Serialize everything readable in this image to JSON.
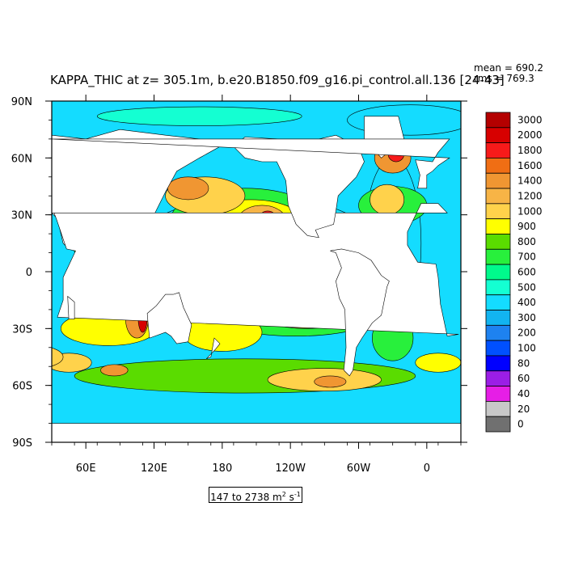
{
  "chart_data": {
    "type": "heatmap",
    "title": "KAPPA_THIC at z= 305.1m, b.e20.B1850.f09_g16.pi_control.all.136 [24-43]",
    "stats": {
      "mean": "mean = 690.2",
      "rms": "rms = 769.3"
    },
    "range_label": {
      "text": "147 to 2738 m",
      "sup1": "2",
      "mid": " s",
      "sup2": "-1"
    },
    "x_ticks": [
      "60E",
      "120E",
      "180",
      "120W",
      "60W",
      "0"
    ],
    "x_tick_lon": [
      60,
      120,
      180,
      240,
      300,
      360
    ],
    "xlim": [
      30,
      390
    ],
    "y_ticks": [
      "90N",
      "60N",
      "30N",
      "0",
      "30S",
      "60S",
      "90S"
    ],
    "y_tick_lat": [
      90,
      60,
      30,
      0,
      -30,
      -60,
      -90
    ],
    "ylim": [
      -90,
      90
    ],
    "colorbar": {
      "levels": [
        "3000",
        "2000",
        "1800",
        "1600",
        "1400",
        "1200",
        "1000",
        "900",
        "800",
        "700",
        "600",
        "500",
        "400",
        "300",
        "200",
        "100",
        "80",
        "60",
        "40",
        "20",
        "0"
      ],
      "colors": [
        "#b40000",
        "#d70000",
        "#f71a1a",
        "#f06e14",
        "#f09632",
        "#f7b446",
        "#ffd24b",
        "#ffff00",
        "#5adc00",
        "#28f03c",
        "#00fa8c",
        "#14ffd2",
        "#14dcff",
        "#12b4f0",
        "#1e82f0",
        "#0050ff",
        "#0000ff",
        "#9b1ee6",
        "#e61ee6",
        "#c8c8c8",
        "#707070"
      ]
    },
    "land_color": "#ffffff",
    "blobs": [
      {
        "lon": 210,
        "lat": 10,
        "rx": 110,
        "ry": 30,
        "value": 400
      },
      {
        "lon": 330,
        "lat": 15,
        "rx": 25,
        "ry": 45,
        "value": 400
      },
      {
        "lon": 345,
        "lat": 80,
        "rx": 55,
        "ry": 8,
        "value": 450
      },
      {
        "lon": 200,
        "lat": 28,
        "rx": 65,
        "ry": 16,
        "value": 700
      },
      {
        "lon": 205,
        "lat": 27,
        "rx": 45,
        "ry": 11,
        "value": 900
      },
      {
        "lon": 215,
        "lat": 26,
        "rx": 22,
        "ry": 9,
        "value": 1200
      },
      {
        "lon": 220,
        "lat": 26,
        "rx": 9,
        "ry": 6,
        "value": 1800
      },
      {
        "lon": 165,
        "lat": 40,
        "rx": 35,
        "ry": 10,
        "value": 1000
      },
      {
        "lon": 150,
        "lat": 44,
        "rx": 18,
        "ry": 6,
        "value": 1400
      },
      {
        "lon": 245,
        "lat": -20,
        "rx": 80,
        "ry": 14,
        "value": 700
      },
      {
        "lon": 255,
        "lat": -20,
        "rx": 48,
        "ry": 10,
        "value": 1000
      },
      {
        "lon": 265,
        "lat": -20,
        "rx": 20,
        "ry": 6,
        "value": 1400
      },
      {
        "lon": 265,
        "lat": -20,
        "rx": 8,
        "ry": 3,
        "value": 1800
      },
      {
        "lon": 330,
        "lat": 35,
        "rx": 30,
        "ry": 10,
        "value": 700
      },
      {
        "lon": 325,
        "lat": 38,
        "rx": 15,
        "ry": 8,
        "value": 1000
      },
      {
        "lon": 330,
        "lat": 60,
        "rx": 16,
        "ry": 8,
        "value": 1400
      },
      {
        "lon": 333,
        "lat": 62,
        "rx": 7,
        "ry": 4,
        "value": 1800
      },
      {
        "lon": 80,
        "lat": -30,
        "rx": 42,
        "ry": 9,
        "value": 900
      },
      {
        "lon": 105,
        "lat": -25,
        "rx": 10,
        "ry": 10,
        "value": 1400
      },
      {
        "lon": 110,
        "lat": -24,
        "rx": 4,
        "ry": 8,
        "value": 2000
      },
      {
        "lon": 180,
        "lat": -32,
        "rx": 35,
        "ry": 10,
        "value": 900
      },
      {
        "lon": 200,
        "lat": -55,
        "rx": 150,
        "ry": 9,
        "value": 800
      },
      {
        "lon": 270,
        "lat": -57,
        "rx": 50,
        "ry": 6,
        "value": 1000
      },
      {
        "lon": 275,
        "lat": -58,
        "rx": 14,
        "ry": 3,
        "value": 1400
      },
      {
        "lon": 45,
        "lat": -48,
        "rx": 20,
        "ry": 5,
        "value": 1000
      },
      {
        "lon": 85,
        "lat": -52,
        "rx": 12,
        "ry": 3,
        "value": 1400
      },
      {
        "lon": 15,
        "lat": -45,
        "rx": 25,
        "ry": 6,
        "value": 1000
      },
      {
        "lon": 370,
        "lat": -48,
        "rx": 20,
        "ry": 5,
        "value": 900
      },
      {
        "lon": 330,
        "lat": -35,
        "rx": 18,
        "ry": 12,
        "value": 700
      },
      {
        "lon": 60,
        "lat": 15,
        "rx": 12,
        "ry": 8,
        "value": 700
      },
      {
        "lon": 120,
        "lat": 8,
        "rx": 14,
        "ry": 8,
        "value": 700
      },
      {
        "lon": 160,
        "lat": 82,
        "rx": 90,
        "ry": 5,
        "value": 550
      }
    ],
    "land_polygons": [
      [
        [
          30,
          72
        ],
        [
          60,
          70
        ],
        [
          90,
          75
        ],
        [
          130,
          72
        ],
        [
          160,
          70
        ],
        [
          178,
          66
        ],
        [
          160,
          60
        ],
        [
          140,
          53
        ],
        [
          130,
          42
        ],
        [
          120,
          30
        ],
        [
          108,
          20
        ],
        [
          105,
          10
        ],
        [
          98,
          5
        ],
        [
          95,
          15
        ],
        [
          88,
          22
        ],
        [
          80,
          8
        ],
        [
          77,
          8
        ],
        [
          72,
          20
        ],
        [
          60,
          25
        ],
        [
          57,
          25
        ],
        [
          52,
          12
        ],
        [
          45,
          12
        ],
        [
          40,
          15
        ],
        [
          35,
          28
        ],
        [
          30,
          31
        ]
      ],
      [
        [
          30,
          31
        ],
        [
          18,
          31
        ],
        [
          10,
          36
        ],
        [
          -5,
          36
        ],
        [
          -17,
          21
        ],
        [
          -17,
          14
        ],
        [
          -8,
          5
        ],
        [
          8,
          4
        ],
        [
          10,
          -3
        ],
        [
          12,
          -17
        ],
        [
          18,
          -34
        ],
        [
          28,
          -33
        ],
        [
          35,
          -24
        ],
        [
          40,
          -15
        ],
        [
          40,
          -3
        ],
        [
          51,
          11
        ],
        [
          43,
          12
        ],
        [
          34,
          28
        ],
        [
          32,
          31
        ]
      ],
      [
        [
          44,
          -13
        ],
        [
          50,
          -16
        ],
        [
          50,
          -25
        ],
        [
          45,
          -25
        ]
      ],
      [
        [
          114,
          -22
        ],
        [
          122,
          -18
        ],
        [
          130,
          -12
        ],
        [
          137,
          -12
        ],
        [
          142,
          -11
        ],
        [
          146,
          -19
        ],
        [
          153,
          -28
        ],
        [
          150,
          -37
        ],
        [
          140,
          -38
        ],
        [
          135,
          -34
        ],
        [
          130,
          -32
        ],
        [
          116,
          -35
        ],
        [
          115,
          -29
        ]
      ],
      [
        [
          166,
          -46
        ],
        [
          174,
          -41
        ],
        [
          178,
          -38
        ],
        [
          173,
          -35
        ],
        [
          170,
          -45
        ]
      ],
      [
        [
          190,
          66
        ],
        [
          200,
          71
        ],
        [
          230,
          70
        ],
        [
          250,
          70
        ],
        [
          265,
          70
        ],
        [
          280,
          72
        ],
        [
          300,
          66
        ],
        [
          305,
          58
        ],
        [
          298,
          50
        ],
        [
          290,
          45
        ],
        [
          282,
          40
        ],
        [
          280,
          32
        ],
        [
          278,
          25
        ],
        [
          262,
          22
        ],
        [
          265,
          18
        ],
        [
          255,
          19
        ],
        [
          245,
          25
        ],
        [
          238,
          35
        ],
        [
          236,
          48
        ],
        [
          228,
          58
        ],
        [
          215,
          58
        ],
        [
          200,
          60
        ]
      ],
      [
        [
          275,
          11
        ],
        [
          280,
          10
        ],
        [
          285,
          2
        ],
        [
          280,
          -5
        ],
        [
          283,
          -14
        ],
        [
          288,
          -20
        ],
        [
          289,
          -40
        ],
        [
          287,
          -52
        ],
        [
          292,
          -55
        ],
        [
          295,
          -52
        ],
        [
          298,
          -40
        ],
        [
          303,
          -35
        ],
        [
          312,
          -27
        ],
        [
          320,
          -23
        ],
        [
          325,
          -8
        ],
        [
          327,
          -5
        ],
        [
          320,
          -2
        ],
        [
          311,
          6
        ],
        [
          300,
          10
        ],
        [
          285,
          12
        ]
      ],
      [
        [
          305,
          82
        ],
        [
          335,
          82
        ],
        [
          340,
          70
        ],
        [
          320,
          60
        ],
        [
          305,
          70
        ]
      ],
      [
        [
          -10,
          59
        ],
        [
          -6,
          51
        ],
        [
          -8,
          44
        ],
        [
          0,
          44
        ],
        [
          0,
          51
        ],
        [
          5,
          53
        ],
        [
          10,
          56
        ],
        [
          20,
          60
        ],
        [
          30,
          70
        ],
        [
          20,
          70
        ],
        [
          10,
          63
        ],
        [
          5,
          58
        ]
      ],
      [
        [
          30,
          -80
        ],
        [
          390,
          -80
        ],
        [
          390,
          -90
        ],
        [
          30,
          -90
        ]
      ]
    ]
  }
}
